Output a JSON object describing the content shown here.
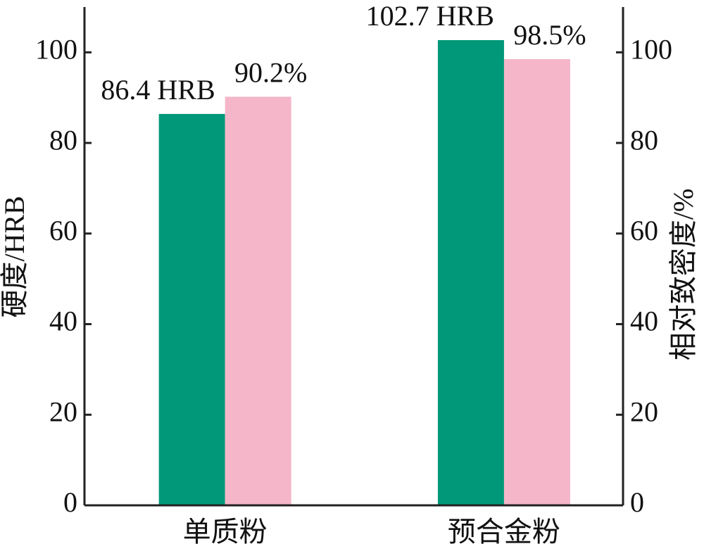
{
  "chart_data": {
    "type": "bar",
    "categories": [
      "单质粉",
      "预合金粉"
    ],
    "ylabel": "硬度/HRB",
    "y2label": "相对致密度/%",
    "ylim": [
      0,
      110
    ],
    "yticks": [
      0,
      20,
      40,
      60,
      80,
      100
    ],
    "y2lim": [
      0,
      110
    ],
    "y2ticks": [
      0,
      20,
      40,
      60,
      80,
      100
    ],
    "grid": false,
    "series": [
      {
        "color": "#009878",
        "values": [
          86.4,
          102.7
        ],
        "value_labels": [
          "86.4 HRB",
          "102.7 HRB"
        ]
      },
      {
        "color": "#f5b6c9",
        "values": [
          90.2,
          98.5
        ],
        "value_labels": [
          "90.2%",
          "98.5%"
        ],
        "axis": "y2"
      }
    ]
  }
}
